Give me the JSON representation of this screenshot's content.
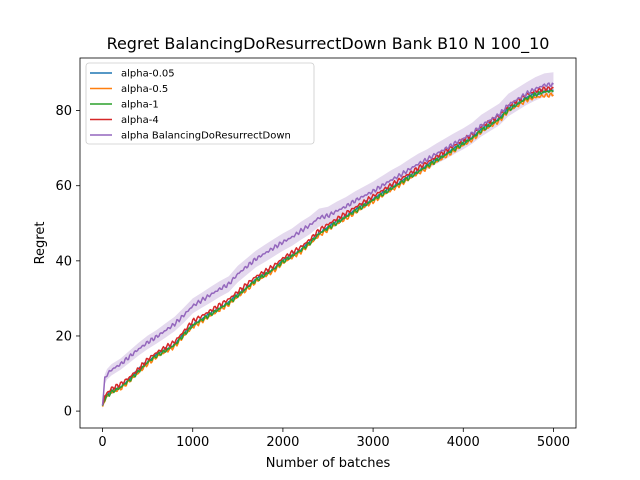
{
  "chart_data": {
    "type": "line",
    "title": "Regret BalancingDoResurrectDown Bank B10 N 100_10",
    "xlabel": "Number of batches",
    "ylabel": "Regret",
    "xlim": [
      -250,
      5250
    ],
    "ylim": [
      -4.5,
      94
    ],
    "xticks": [
      0,
      1000,
      2000,
      3000,
      4000,
      5000
    ],
    "yticks": [
      0,
      20,
      40,
      60,
      80
    ],
    "grid": false,
    "legend_position": "top-left",
    "series": [
      {
        "name": "alpha-0.05",
        "color": "#1f77b4",
        "x": [
          0,
          25,
          50,
          100,
          200,
          300,
          400,
          500,
          600,
          700,
          800,
          900,
          1000,
          1100,
          1200,
          1300,
          1400,
          1500,
          1600,
          1700,
          1800,
          1900,
          2000,
          2100,
          2200,
          2300,
          2400,
          2500,
          2600,
          2700,
          2800,
          2900,
          3000,
          3100,
          3200,
          3300,
          3400,
          3500,
          3600,
          3700,
          3800,
          3900,
          4000,
          4100,
          4200,
          4300,
          4400,
          4500,
          4600,
          4700,
          4800,
          4900,
          5000
        ],
        "y": [
          1.5,
          3.5,
          4.2,
          5.3,
          6.5,
          8.5,
          10.8,
          13.2,
          15.0,
          16.3,
          17.8,
          20.5,
          23.0,
          24.5,
          26.0,
          27.5,
          29.0,
          31.0,
          33.0,
          35.0,
          36.5,
          38.0,
          40.0,
          41.5,
          43.0,
          45.0,
          47.5,
          49.0,
          50.5,
          52.0,
          53.5,
          55.0,
          56.5,
          58.0,
          59.5,
          61.0,
          62.5,
          64.0,
          65.5,
          67.0,
          68.5,
          70.0,
          71.5,
          73.0,
          75.0,
          76.5,
          78.0,
          80.5,
          82.0,
          83.5,
          84.5,
          85.3,
          85.5
        ]
      },
      {
        "name": "alpha-0.5",
        "color": "#ff7f0e",
        "x": [
          0,
          25,
          50,
          100,
          200,
          300,
          400,
          500,
          600,
          700,
          800,
          900,
          1000,
          1100,
          1200,
          1300,
          1400,
          1500,
          1600,
          1700,
          1800,
          1900,
          2000,
          2100,
          2200,
          2300,
          2400,
          2500,
          2600,
          2700,
          2800,
          2900,
          3000,
          3100,
          3200,
          3300,
          3400,
          3500,
          3600,
          3700,
          3800,
          3900,
          4000,
          4100,
          4200,
          4300,
          4400,
          4500,
          4600,
          4700,
          4800,
          4900,
          5000
        ],
        "y": [
          1.2,
          3.0,
          3.8,
          4.9,
          6.0,
          8.0,
          10.2,
          12.6,
          14.4,
          15.8,
          17.2,
          19.9,
          22.4,
          23.9,
          25.4,
          27.0,
          28.4,
          30.4,
          32.4,
          34.4,
          35.9,
          37.4,
          39.4,
          40.9,
          42.4,
          44.4,
          46.8,
          48.3,
          49.8,
          51.3,
          52.8,
          54.3,
          55.8,
          57.3,
          58.8,
          60.3,
          61.8,
          63.3,
          64.8,
          66.3,
          67.8,
          69.3,
          70.8,
          72.3,
          74.3,
          75.8,
          77.3,
          79.8,
          81.3,
          82.8,
          83.5,
          84.0,
          84.2
        ]
      },
      {
        "name": "alpha-1",
        "color": "#2ca02c",
        "x": [
          0,
          25,
          50,
          100,
          200,
          300,
          400,
          500,
          600,
          700,
          800,
          900,
          1000,
          1100,
          1200,
          1300,
          1400,
          1500,
          1600,
          1700,
          1800,
          1900,
          2000,
          2100,
          2200,
          2300,
          2400,
          2500,
          2600,
          2700,
          2800,
          2900,
          3000,
          3100,
          3200,
          3300,
          3400,
          3500,
          3600,
          3700,
          3800,
          3900,
          4000,
          4100,
          4200,
          4300,
          4400,
          4500,
          4600,
          4700,
          4800,
          4900,
          5000
        ],
        "y": [
          1.4,
          3.3,
          4.0,
          5.1,
          6.3,
          8.3,
          10.6,
          13.0,
          14.8,
          16.1,
          17.6,
          20.3,
          22.8,
          24.3,
          25.8,
          27.3,
          28.8,
          30.8,
          32.8,
          34.8,
          36.3,
          37.8,
          39.8,
          41.3,
          42.8,
          44.8,
          47.2,
          48.7,
          50.2,
          51.7,
          53.2,
          54.7,
          56.2,
          57.7,
          59.2,
          60.7,
          62.2,
          63.7,
          65.2,
          66.7,
          68.2,
          69.7,
          71.2,
          72.7,
          74.7,
          76.2,
          77.7,
          80.2,
          81.7,
          83.2,
          84.3,
          85.0,
          85.2
        ]
      },
      {
        "name": "alpha-4",
        "color": "#d62728",
        "x": [
          0,
          25,
          50,
          100,
          200,
          300,
          400,
          500,
          600,
          700,
          800,
          900,
          1000,
          1100,
          1200,
          1300,
          1400,
          1500,
          1600,
          1700,
          1800,
          1900,
          2000,
          2100,
          2200,
          2300,
          2400,
          2500,
          2600,
          2700,
          2800,
          2900,
          3000,
          3100,
          3200,
          3300,
          3400,
          3500,
          3600,
          3700,
          3800,
          3900,
          4000,
          4100,
          4200,
          4300,
          4400,
          4500,
          4600,
          4700,
          4800,
          4900,
          5000
        ],
        "y": [
          1.6,
          4.0,
          4.8,
          6.0,
          7.2,
          9.0,
          11.3,
          13.8,
          15.6,
          17.0,
          18.5,
          21.2,
          24.0,
          25.3,
          26.8,
          28.3,
          29.8,
          31.8,
          33.8,
          35.8,
          37.2,
          38.7,
          40.7,
          42.2,
          43.7,
          45.7,
          48.2,
          49.7,
          51.2,
          52.7,
          54.2,
          55.7,
          57.2,
          58.7,
          60.2,
          61.7,
          63.2,
          64.7,
          66.2,
          67.7,
          69.2,
          70.7,
          72.2,
          73.7,
          75.7,
          77.2,
          78.7,
          81.2,
          82.7,
          84.2,
          85.2,
          85.8,
          86.0
        ]
      },
      {
        "name": "alpha BalancingDoResurrectDown",
        "color": "#9467bd",
        "band": [
          1.2,
          1.3,
          1.4,
          1.5,
          1.5,
          1.6,
          1.7,
          1.8,
          1.8,
          1.9,
          1.9,
          2.0,
          2.0,
          2.0,
          2.1,
          2.1,
          2.1,
          2.2,
          2.2,
          2.2,
          2.3,
          2.3,
          2.3,
          2.3,
          2.4,
          2.4,
          2.4,
          2.4,
          2.5,
          2.5,
          2.5,
          2.5,
          2.6,
          2.6,
          2.6,
          2.6,
          2.7,
          2.7,
          2.7,
          2.7,
          2.8,
          2.8,
          2.8,
          2.8,
          2.9,
          2.9,
          2.9,
          3.0,
          3.0,
          3.0,
          3.1,
          3.1,
          3.2
        ],
        "x": [
          0,
          25,
          50,
          100,
          200,
          300,
          400,
          500,
          600,
          700,
          800,
          900,
          1000,
          1100,
          1200,
          1300,
          1400,
          1500,
          1600,
          1700,
          1800,
          1900,
          2000,
          2100,
          2200,
          2300,
          2400,
          2500,
          2600,
          2700,
          2800,
          2900,
          3000,
          3100,
          3200,
          3300,
          3400,
          3500,
          3600,
          3700,
          3800,
          3900,
          4000,
          4100,
          4200,
          4300,
          4400,
          4500,
          4600,
          4700,
          4800,
          4900,
          5000
        ],
        "y": [
          1.5,
          8.5,
          9.8,
          11.0,
          12.5,
          14.5,
          16.5,
          18.3,
          19.8,
          21.5,
          23.2,
          25.5,
          28.0,
          29.5,
          31.0,
          32.5,
          33.8,
          36.5,
          38.5,
          40.5,
          42.0,
          43.5,
          45.0,
          46.3,
          48.0,
          49.5,
          51.5,
          52.0,
          53.3,
          54.5,
          56.0,
          57.3,
          58.5,
          60.0,
          61.5,
          62.8,
          64.3,
          65.8,
          67.0,
          68.5,
          69.8,
          71.2,
          72.5,
          74.0,
          76.0,
          77.5,
          79.0,
          81.5,
          83.0,
          84.5,
          85.8,
          86.8,
          87.0
        ]
      }
    ]
  }
}
